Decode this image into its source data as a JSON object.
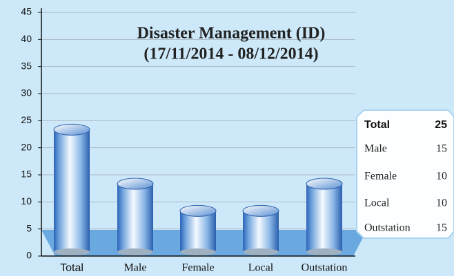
{
  "chart_data": {
    "type": "bar",
    "title": "Disaster Management (ID)",
    "subtitle": "(17/11/2014 - 08/12/2014)",
    "categories": [
      "Total",
      "Male",
      "Female",
      "Local",
      "Outstation"
    ],
    "values": [
      25,
      15,
      10,
      10,
      15
    ],
    "color": "#4f8fd0",
    "ylim": [
      0,
      45
    ],
    "yticks": [
      0,
      5,
      10,
      15,
      20,
      25,
      30,
      35,
      40,
      45
    ],
    "grid": true
  }
}
